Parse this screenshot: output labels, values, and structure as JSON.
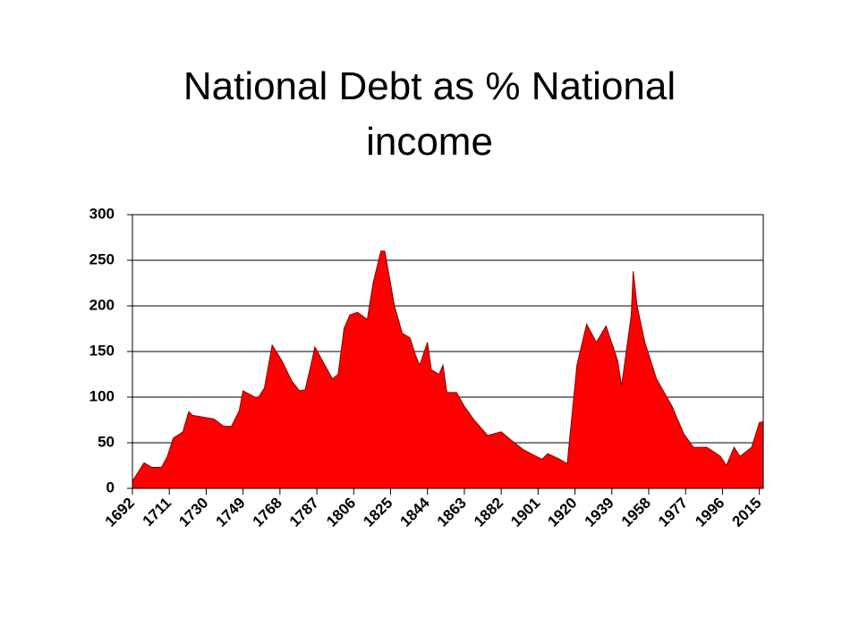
{
  "chart_data": {
    "type": "area",
    "title": "National Debt as % National income",
    "color": "#ff0000",
    "x": [
      1692,
      1698,
      1702,
      1707,
      1710,
      1713,
      1718,
      1721,
      1723,
      1734,
      1739,
      1743,
      1747,
      1749,
      1755,
      1757,
      1760,
      1764,
      1769,
      1774,
      1778,
      1781,
      1785,
      1786,
      1795,
      1798,
      1801,
      1804,
      1808,
      1813,
      1816,
      1820,
      1822,
      1827,
      1831,
      1835,
      1838,
      1840,
      1844,
      1846,
      1850,
      1852,
      1854,
      1859,
      1863,
      1868,
      1875,
      1882,
      1887,
      1893,
      1900,
      1903,
      1906,
      1912,
      1916,
      1921,
      1926,
      1931,
      1936,
      1942,
      1944,
      1949,
      1950,
      1952,
      1956,
      1962,
      1970,
      1972,
      1976,
      1981,
      1988,
      1995,
      1998,
      2002,
      2005,
      2011,
      2015,
      2017
    ],
    "values": [
      8,
      28,
      23,
      23,
      35,
      55,
      62,
      84,
      80,
      76,
      68,
      68,
      85,
      107,
      100,
      100,
      110,
      157,
      140,
      118,
      107,
      108,
      145,
      155,
      120,
      125,
      175,
      190,
      193,
      185,
      225,
      260,
      260,
      200,
      170,
      165,
      145,
      135,
      160,
      130,
      125,
      135,
      105,
      105,
      90,
      75,
      58,
      62,
      53,
      43,
      35,
      32,
      38,
      32,
      27,
      135,
      180,
      160,
      178,
      140,
      112,
      190,
      238,
      200,
      160,
      120,
      90,
      80,
      60,
      45,
      45,
      35,
      25,
      45,
      35,
      45,
      72,
      73
    ],
    "xlim": [
      1692,
      2017
    ],
    "xticks": [
      1692,
      1711,
      1730,
      1749,
      1768,
      1787,
      1806,
      1825,
      1844,
      1863,
      1882,
      1901,
      1920,
      1939,
      1958,
      1977,
      1996,
      2015
    ],
    "ylim": [
      0,
      300
    ],
    "yticks": [
      0,
      50,
      100,
      150,
      200,
      250,
      300
    ],
    "grid": true
  }
}
